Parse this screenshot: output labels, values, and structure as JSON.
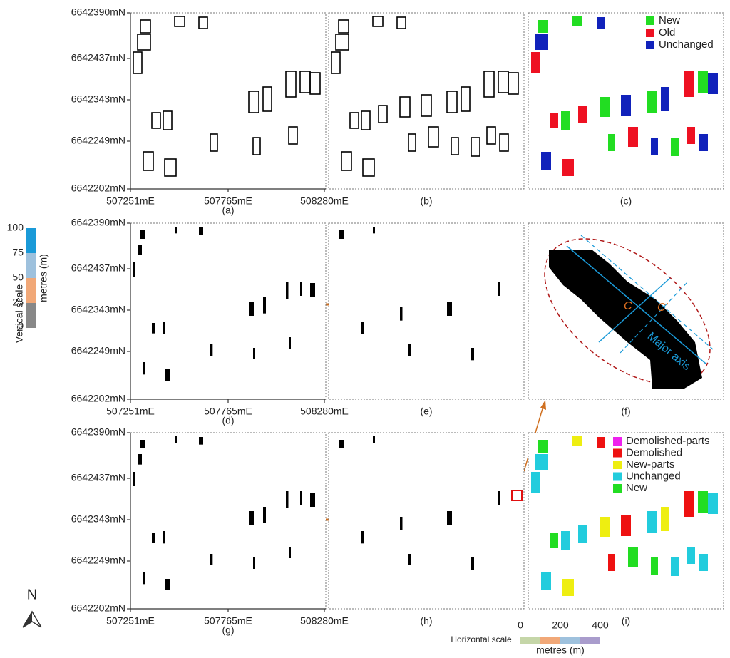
{
  "figure": {
    "y_labels": [
      "6642390mN",
      "6642437mN",
      "6642343mN",
      "6642249mN",
      "6642202mN"
    ],
    "x_labels": [
      "507251mE",
      "507765mE",
      "508280mE"
    ],
    "panel_labels": [
      "(a)",
      "(b)",
      "(c)",
      "(d)",
      "(e)",
      "(f)",
      "(g)",
      "(h)",
      "(i)"
    ],
    "legend_c": [
      {
        "label": "New",
        "color": "#22dd22"
      },
      {
        "label": "Old",
        "color": "#ee1122"
      },
      {
        "label": "Unchanged",
        "color": "#1122bb"
      }
    ],
    "legend_i": [
      {
        "label": "Demolished-parts",
        "color": "#ee22ee"
      },
      {
        "label": "Demolished",
        "color": "#ee1111"
      },
      {
        "label": "New-parts",
        "color": "#eeee11"
      },
      {
        "label": "Unchanged",
        "color": "#22ccdd"
      },
      {
        "label": "New",
        "color": "#22dd22"
      }
    ],
    "panel_f": {
      "c": "C",
      "c_prime": "C′",
      "axis": "Major axis"
    },
    "vertical_scale": {
      "title": "Vertical scale",
      "unit": "metres (m)",
      "ticks": [
        "100",
        "75",
        "50",
        "25",
        "0"
      ]
    },
    "horizontal_scale": {
      "title": "Horizontal scale",
      "unit": "metres (m)",
      "ticks": [
        "0",
        "200",
        "400"
      ]
    },
    "north": "N"
  }
}
